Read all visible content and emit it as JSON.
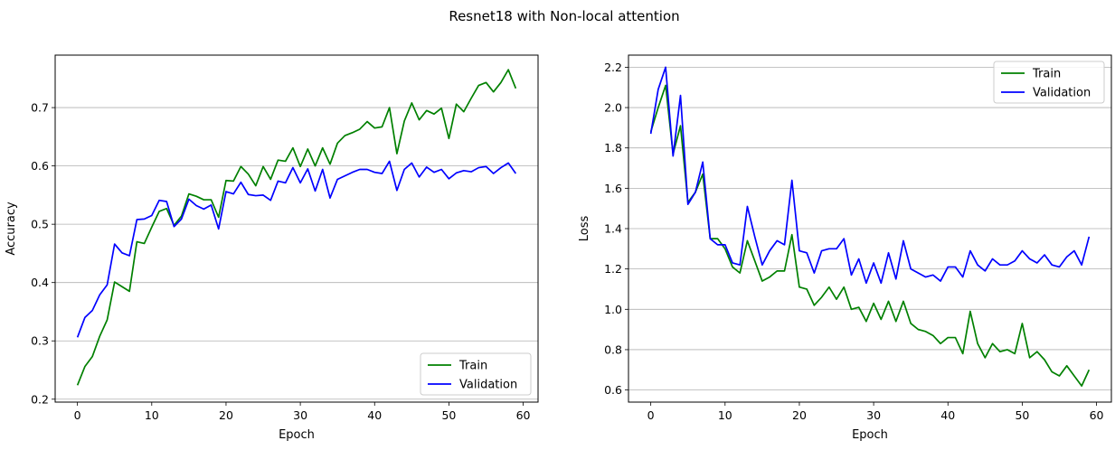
{
  "figure": {
    "title": "Resnet18 with Non-local attention"
  },
  "chart_data": [
    {
      "type": "line",
      "title": "",
      "xlabel": "Epoch",
      "ylabel": "Accuracy",
      "xlim": [
        -3,
        62
      ],
      "ylim": [
        0.195,
        0.79
      ],
      "xticks": [
        0,
        10,
        20,
        30,
        40,
        50,
        60
      ],
      "yticks": [
        0.2,
        0.3,
        0.4,
        0.5,
        0.6,
        0.7
      ],
      "ytick_labels": [
        "0.2",
        "0.3",
        "0.4",
        "0.5",
        "0.6",
        "0.7"
      ],
      "grid": "horizontal",
      "legend_position": "lower-right",
      "series": [
        {
          "name": "Train",
          "color": "#008000",
          "x": [
            0,
            1,
            2,
            3,
            4,
            5,
            6,
            7,
            8,
            9,
            10,
            11,
            12,
            13,
            14,
            15,
            16,
            17,
            18,
            19,
            20,
            21,
            22,
            23,
            24,
            25,
            26,
            27,
            28,
            29,
            30,
            31,
            32,
            33,
            34,
            35,
            36,
            37,
            38,
            39,
            40,
            41,
            42,
            43,
            44,
            45,
            46,
            47,
            48,
            49,
            50,
            51,
            52,
            53,
            54,
            55,
            56,
            57,
            58,
            59
          ],
          "values": [
            0.224,
            0.256,
            0.273,
            0.308,
            0.336,
            0.401,
            0.393,
            0.385,
            0.47,
            0.467,
            0.495,
            0.522,
            0.527,
            0.498,
            0.514,
            0.552,
            0.548,
            0.542,
            0.542,
            0.512,
            0.575,
            0.574,
            0.599,
            0.586,
            0.566,
            0.599,
            0.577,
            0.61,
            0.608,
            0.631,
            0.599,
            0.629,
            0.6,
            0.631,
            0.603,
            0.639,
            0.652,
            0.657,
            0.663,
            0.676,
            0.665,
            0.667,
            0.7,
            0.621,
            0.677,
            0.708,
            0.679,
            0.695,
            0.689,
            0.699,
            0.647,
            0.706,
            0.693,
            0.716,
            0.738,
            0.743,
            0.727,
            0.743,
            0.765,
            0.733
          ]
        },
        {
          "name": "Validation",
          "color": "#0000ff",
          "x": [
            0,
            1,
            2,
            3,
            4,
            5,
            6,
            7,
            8,
            9,
            10,
            11,
            12,
            13,
            14,
            15,
            16,
            17,
            18,
            19,
            20,
            21,
            22,
            23,
            24,
            25,
            26,
            27,
            28,
            29,
            30,
            31,
            32,
            33,
            34,
            35,
            36,
            37,
            38,
            39,
            40,
            41,
            42,
            43,
            44,
            45,
            46,
            47,
            48,
            49,
            50,
            51,
            52,
            53,
            54,
            55,
            56,
            57,
            58,
            59
          ],
          "values": [
            0.306,
            0.34,
            0.352,
            0.379,
            0.396,
            0.466,
            0.451,
            0.446,
            0.508,
            0.509,
            0.515,
            0.541,
            0.539,
            0.496,
            0.509,
            0.543,
            0.532,
            0.526,
            0.533,
            0.492,
            0.556,
            0.552,
            0.572,
            0.551,
            0.549,
            0.55,
            0.541,
            0.574,
            0.571,
            0.597,
            0.571,
            0.595,
            0.557,
            0.594,
            0.545,
            0.577,
            0.583,
            0.589,
            0.594,
            0.594,
            0.589,
            0.587,
            0.608,
            0.558,
            0.594,
            0.605,
            0.581,
            0.598,
            0.589,
            0.594,
            0.578,
            0.588,
            0.592,
            0.59,
            0.597,
            0.599,
            0.587,
            0.597,
            0.605,
            0.587
          ]
        }
      ]
    },
    {
      "type": "line",
      "title": "",
      "xlabel": "Epoch",
      "ylabel": "Loss",
      "xlim": [
        -3,
        62
      ],
      "ylim": [
        0.54,
        2.26
      ],
      "xticks": [
        0,
        10,
        20,
        30,
        40,
        50,
        60
      ],
      "yticks": [
        0.6,
        0.8,
        1.0,
        1.2,
        1.4,
        1.6,
        1.8,
        2.0,
        2.2
      ],
      "ytick_labels": [
        "0.6",
        "0.8",
        "1.0",
        "1.2",
        "1.4",
        "1.6",
        "1.8",
        "2.0",
        "2.2"
      ],
      "grid": "horizontal",
      "legend_position": "upper-right",
      "series": [
        {
          "name": "Train",
          "color": "#008000",
          "x": [
            0,
            1,
            2,
            3,
            4,
            5,
            6,
            7,
            8,
            9,
            10,
            11,
            12,
            13,
            14,
            15,
            16,
            17,
            18,
            19,
            20,
            21,
            22,
            23,
            24,
            25,
            26,
            27,
            28,
            29,
            30,
            31,
            32,
            33,
            34,
            35,
            36,
            37,
            38,
            39,
            40,
            41,
            42,
            43,
            44,
            45,
            46,
            47,
            48,
            49,
            50,
            51,
            52,
            53,
            54,
            55,
            56,
            57,
            58,
            59
          ],
          "values": [
            1.88,
            2.0,
            2.11,
            1.77,
            1.91,
            1.53,
            1.58,
            1.67,
            1.35,
            1.35,
            1.3,
            1.21,
            1.18,
            1.34,
            1.24,
            1.14,
            1.16,
            1.19,
            1.19,
            1.37,
            1.11,
            1.1,
            1.02,
            1.06,
            1.11,
            1.05,
            1.11,
            1.0,
            1.01,
            0.94,
            1.03,
            0.95,
            1.04,
            0.94,
            1.04,
            0.93,
            0.9,
            0.89,
            0.87,
            0.83,
            0.86,
            0.86,
            0.78,
            0.99,
            0.83,
            0.76,
            0.83,
            0.79,
            0.8,
            0.78,
            0.93,
            0.76,
            0.79,
            0.75,
            0.69,
            0.67,
            0.72,
            0.67,
            0.62,
            0.7
          ]
        },
        {
          "name": "Validation",
          "color": "#0000ff",
          "x": [
            0,
            1,
            2,
            3,
            4,
            5,
            6,
            7,
            8,
            9,
            10,
            11,
            12,
            13,
            14,
            15,
            16,
            17,
            18,
            19,
            20,
            21,
            22,
            23,
            24,
            25,
            26,
            27,
            28,
            29,
            30,
            31,
            32,
            33,
            34,
            35,
            36,
            37,
            38,
            39,
            40,
            41,
            42,
            43,
            44,
            45,
            46,
            47,
            48,
            49,
            50,
            51,
            52,
            53,
            54,
            55,
            56,
            57,
            58,
            59
          ],
          "values": [
            1.87,
            2.09,
            2.2,
            1.76,
            2.06,
            1.52,
            1.58,
            1.73,
            1.35,
            1.32,
            1.32,
            1.23,
            1.22,
            1.51,
            1.36,
            1.22,
            1.29,
            1.34,
            1.32,
            1.64,
            1.29,
            1.28,
            1.18,
            1.29,
            1.3,
            1.3,
            1.35,
            1.17,
            1.25,
            1.13,
            1.23,
            1.13,
            1.28,
            1.15,
            1.34,
            1.2,
            1.18,
            1.16,
            1.17,
            1.14,
            1.21,
            1.21,
            1.16,
            1.29,
            1.22,
            1.19,
            1.25,
            1.22,
            1.22,
            1.24,
            1.29,
            1.25,
            1.23,
            1.27,
            1.22,
            1.21,
            1.26,
            1.29,
            1.22,
            1.36
          ]
        }
      ]
    }
  ]
}
